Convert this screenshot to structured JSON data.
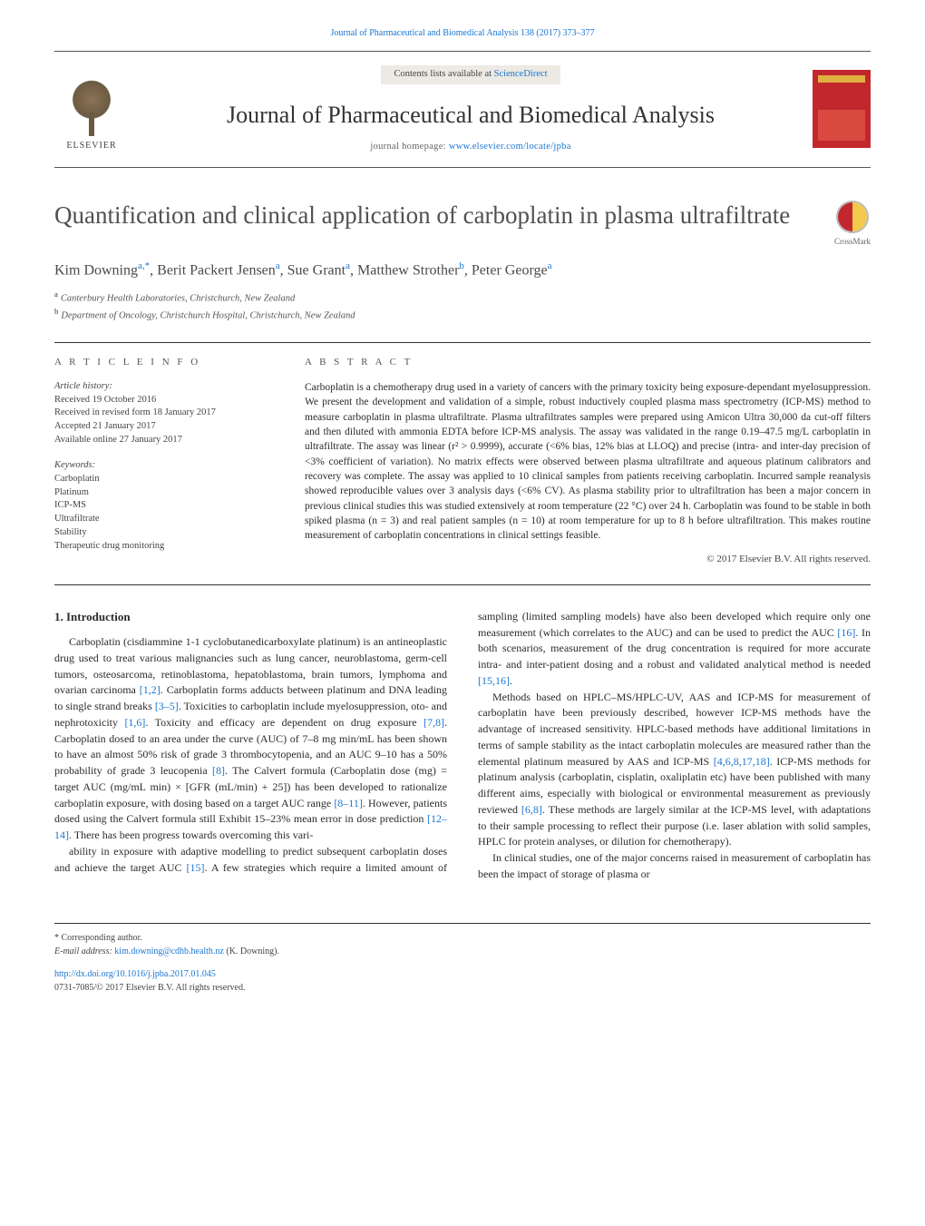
{
  "colors": {
    "link": "#1976d2",
    "text": "#2b2b2b",
    "muted": "#555555",
    "rule": "#333333",
    "cover_bg": "#c1272d",
    "cover_accent": "#e0b040",
    "contents_bg": "#eceae3"
  },
  "typography": {
    "body_font": "Georgia, serif",
    "title_fontsize_pt": 20,
    "journal_fontsize_pt": 19,
    "body_fontsize_pt": 9,
    "abs_fontsize_pt": 8.5
  },
  "header": {
    "citation": "Journal of Pharmaceutical and Biomedical Analysis 138 (2017) 373–377",
    "contents_prefix": "Contents lists available at ",
    "contents_link": "ScienceDirect",
    "journal_name": "Journal of Pharmaceutical and Biomedical Analysis",
    "homepage_prefix": "journal homepage: ",
    "homepage_url": "www.elsevier.com/locate/jpba",
    "elsevier_label": "ELSEVIER"
  },
  "crossmark_label": "CrossMark",
  "article": {
    "title": "Quantification and clinical application of carboplatin in plasma ultrafiltrate",
    "authors_html": "Kim Downing<sup>a,*</sup>, Berit Packert Jensen<sup>a</sup>, Sue Grant<sup>a</sup>, Matthew Strother<sup>b</sup>, Peter George<sup>a</sup>",
    "affiliations": [
      "a  Canterbury Health Laboratories, Christchurch, New Zealand",
      "b  Department of Oncology, Christchurch Hospital, Christchurch, New Zealand"
    ]
  },
  "article_info": {
    "heading": "a r t i c l e   i n f o",
    "history_label": "Article history:",
    "history": [
      "Received 19 October 2016",
      "Received in revised form 18 January 2017",
      "Accepted 21 January 2017",
      "Available online 27 January 2017"
    ],
    "keywords_label": "Keywords:",
    "keywords": [
      "Carboplatin",
      "Platinum",
      "ICP-MS",
      "Ultrafiltrate",
      "Stability",
      "Therapeutic drug monitoring"
    ]
  },
  "abstract": {
    "heading": "a b s t r a c t",
    "text": "Carboplatin is a chemotherapy drug used in a variety of cancers with the primary toxicity being exposure-dependant myelosuppression. We present the development and validation of a simple, robust inductively coupled plasma mass spectrometry (ICP-MS) method to measure carboplatin in plasma ultrafiltrate. Plasma ultrafiltrates samples were prepared using Amicon Ultra 30,000 da cut-off filters and then diluted with ammonia EDTA before ICP-MS analysis. The assay was validated in the range 0.19–47.5 mg/L carboplatin in ultrafiltrate. The assay was linear (r² > 0.9999), accurate (<6% bias, 12% bias at LLOQ) and precise (intra- and inter-day precision of <3% coefficient of variation). No matrix effects were observed between plasma ultrafiltrate and aqueous platinum calibrators and recovery was complete. The assay was applied to 10 clinical samples from patients receiving carboplatin. Incurred sample reanalysis showed reproducible values over 3 analysis days (<6% CV). As plasma stability prior to ultrafiltration has been a major concern in previous clinical studies this was studied extensively at room temperature (22 °C) over 24 h. Carboplatin was found to be stable in both spiked plasma (n = 3) and real patient samples (n = 10) at room temperature for up to 8 h before ultrafiltration. This makes routine measurement of carboplatin concentrations in clinical settings feasible.",
    "copyright": "© 2017 Elsevier B.V. All rights reserved."
  },
  "body": {
    "section_heading": "1.  Introduction",
    "para1": "Carboplatin (cisdiammine 1-1 cyclobutanedicarboxylate platinum) is an antineoplastic drug used to treat various malignancies such as lung cancer, neuroblastoma, germ-cell tumors, osteosarcoma, retinoblastoma, hepatoblastoma, brain tumors, lymphoma and ovarian carcinoma [1,2]. Carboplatin forms adducts between platinum and DNA leading to single strand breaks [3–5]. Toxicities to carboplatin include myelosuppression, oto- and nephrotoxicity [1,6]. Toxicity and efficacy are dependent on drug exposure [7,8]. Carboplatin dosed to an area under the curve (AUC) of 7–8 mg min/mL has been shown to have an almost 50% risk of grade 3 thrombocytopenia, and an AUC 9–10 has a 50% probability of grade 3 leucopenia [8]. The Calvert formula (Carboplatin dose (mg) = target AUC (mg/mL min) × [GFR (mL/min) + 25]) has been developed to rationalize carboplatin exposure, with dosing based on a target AUC range [8–11]. However, patients dosed using the Calvert formula still Exhibit 15–23% mean error in dose prediction [12–14]. There has been progress towards overcoming this vari-",
    "para2": "ability in exposure with adaptive modelling to predict subsequent carboplatin doses and achieve the target AUC [15]. A few strategies which require a limited amount of sampling (limited sampling models) have also been developed which require only one measurement (which correlates to the AUC) and can be used to predict the AUC [16]. In both scenarios, measurement of the drug concentration is required for more accurate intra- and inter-patient dosing and a robust and validated analytical method is needed [15,16].",
    "para3": "Methods based on HPLC–MS/HPLC-UV, AAS and ICP-MS for measurement of carboplatin have been previously described, however ICP-MS methods have the advantage of increased sensitivity. HPLC-based methods have additional limitations in terms of sample stability as the intact carboplatin molecules are measured rather than the elemental platinum measured by AAS and ICP-MS [4,6,8,17,18]. ICP-MS methods for platinum analysis (carboplatin, cisplatin, oxaliplatin etc) have been published with many different aims, especially with biological or environmental measurement as previously reviewed [6,8]. These methods are largely similar at the ICP-MS level, with adaptations to their sample processing to reflect their purpose (i.e. laser ablation with solid samples, HPLC for protein analyses, or dilution for chemotherapy).",
    "para4": "In clinical studies, one of the major concerns raised in measurement of carboplatin has been the impact of storage of plasma or",
    "ref_links": [
      "[1,2]",
      "[3–5]",
      "[1,6]",
      "[7,8]",
      "[8]",
      "[8–11]",
      "[12–14]",
      "[15]",
      "[16]",
      "[15,16]",
      "[4,6,8,17,18]",
      "[6,8]"
    ]
  },
  "footer": {
    "corr_label": "* Corresponding author.",
    "email_label": "E-mail address: ",
    "email": "kim.downing@cdhb.health.nz",
    "email_suffix": " (K. Downing).",
    "doi": "http://dx.doi.org/10.1016/j.jpba.2017.01.045",
    "issn_line": "0731-7085/© 2017 Elsevier B.V. All rights reserved."
  }
}
